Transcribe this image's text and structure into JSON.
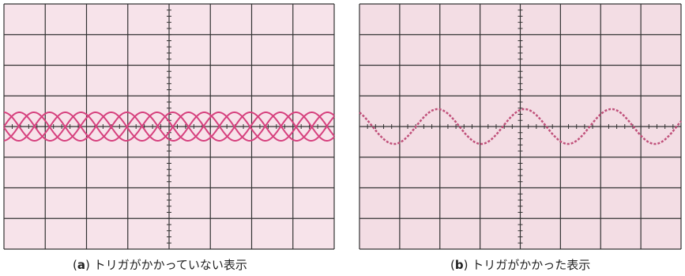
{
  "paren_open": "(",
  "paren_close": ")",
  "panels": [
    {
      "letter": "a",
      "caption": "トリガがかかっていない表示"
    },
    {
      "letter": "b",
      "caption": "トリガがかかった表示"
    }
  ]
}
